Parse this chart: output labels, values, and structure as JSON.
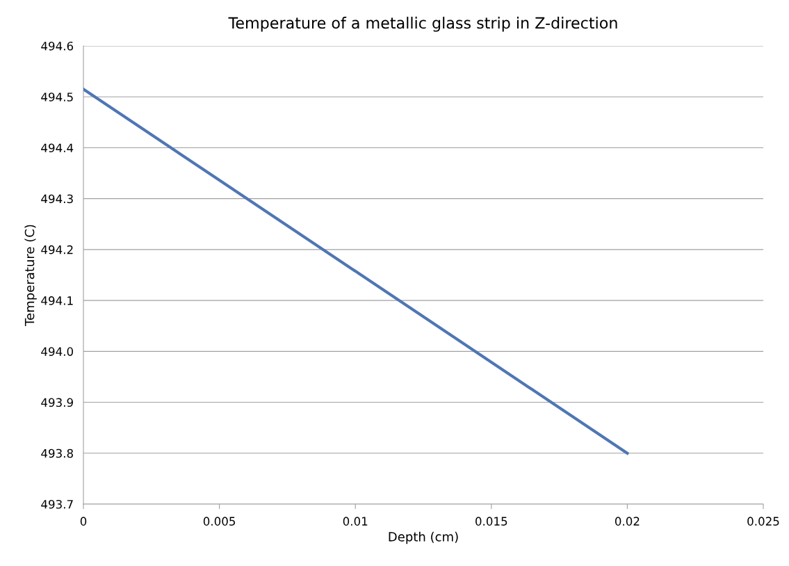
{
  "chart_data": {
    "type": "line",
    "title": "Temperature of a metallic glass strip in Z-direction",
    "xlabel": "Depth (cm)",
    "ylabel": "Temperature (C)",
    "x": [
      0,
      0.02
    ],
    "series": [
      {
        "color": "#4f76b5",
        "values": [
          494.515,
          493.8
        ]
      }
    ],
    "xlim": [
      0,
      0.025
    ],
    "xticks": [
      0,
      0.005,
      0.01,
      0.015,
      0.02,
      0.025
    ],
    "ylim": [
      493.7,
      494.6
    ],
    "yticks": [
      {
        "value": 493.7,
        "label": "493.7"
      },
      {
        "value": 493.8,
        "label": "493.8"
      },
      {
        "value": 493.9,
        "label": "493.9"
      },
      {
        "value": 494.0,
        "label": "494.0"
      },
      {
        "value": 494.1,
        "label": "494.1"
      },
      {
        "value": 494.2,
        "label": "494.2"
      },
      {
        "value": 494.3,
        "label": "494.3"
      },
      {
        "value": 494.4,
        "label": "494.4"
      },
      {
        "value": 494.5,
        "label": "494.5"
      },
      {
        "value": 494.6,
        "label": "494.6"
      }
    ],
    "grid": "y",
    "legend": false,
    "marker": "none",
    "line_style": "solid"
  }
}
